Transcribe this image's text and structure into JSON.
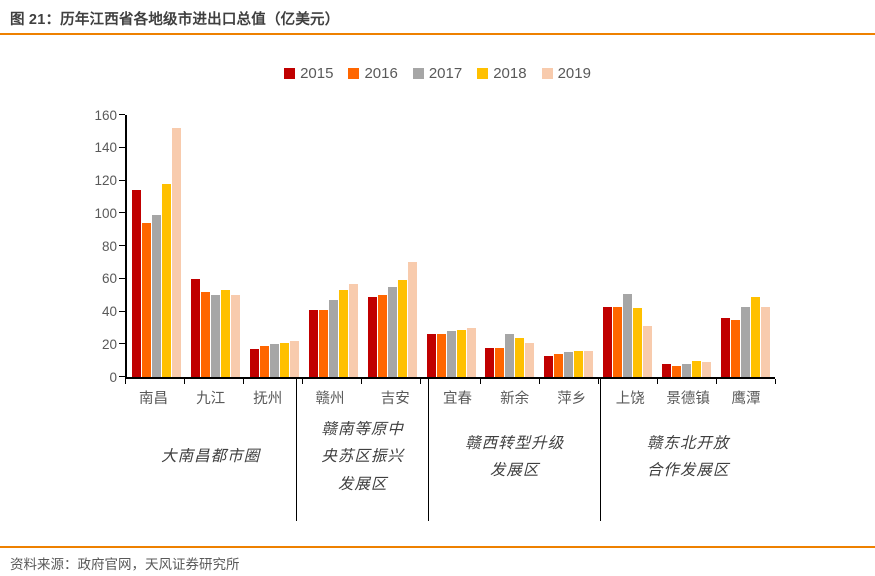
{
  "header": {
    "title": "图 21：历年江西省各地级市进出口总值（亿美元）"
  },
  "accent_color": "#EE8100",
  "source": {
    "text": "资料来源：政府官网，天风证券研究所"
  },
  "chart_data": {
    "type": "bar",
    "title": "历年江西省各地级市进出口总值（亿美元）",
    "unit": "亿美元",
    "ylim": [
      0,
      160
    ],
    "yticks": [
      0,
      20,
      40,
      60,
      80,
      100,
      120,
      140,
      160
    ],
    "grid": false,
    "legend_position": "top",
    "axis_color": "#000000",
    "label_color": "#595959",
    "series": [
      {
        "name": "2015",
        "color": "#C00000"
      },
      {
        "name": "2016",
        "color": "#FF6600"
      },
      {
        "name": "2017",
        "color": "#A6A6A6"
      },
      {
        "name": "2018",
        "color": "#FFC000"
      },
      {
        "name": "2019",
        "color": "#F8CBAD"
      }
    ],
    "groups": [
      {
        "label": "大南昌都市圈",
        "cities": [
          {
            "name": "南昌",
            "values": [
              114,
              94,
              99,
              118,
              152
            ]
          },
          {
            "name": "九江",
            "values": [
              60,
              52,
              50,
              53,
              50
            ]
          },
          {
            "name": "抚州",
            "values": [
              17,
              19,
              20,
              21,
              22
            ]
          }
        ]
      },
      {
        "label": "赣南等原中\n央苏区振兴\n发展区",
        "cities": [
          {
            "name": "赣州",
            "values": [
              41,
              41,
              47,
              53,
              57
            ]
          },
          {
            "name": "吉安",
            "values": [
              49,
              50,
              55,
              59,
              70
            ]
          }
        ]
      },
      {
        "label": "赣西转型升级\n发展区",
        "cities": [
          {
            "name": "宜春",
            "values": [
              26,
              26,
              28,
              29,
              30
            ]
          },
          {
            "name": "新余",
            "values": [
              18,
              18,
              26,
              24,
              21
            ]
          },
          {
            "name": "萍乡",
            "values": [
              13,
              14,
              15,
              16,
              16
            ]
          }
        ]
      },
      {
        "label": "赣东北开放\n合作发展区",
        "cities": [
          {
            "name": "上饶",
            "values": [
              43,
              43,
              51,
              42,
              31
            ]
          },
          {
            "name": "景德镇",
            "values": [
              8,
              7,
              8,
              10,
              9
            ]
          },
          {
            "name": "鹰潭",
            "values": [
              36,
              35,
              43,
              49,
              43
            ]
          }
        ]
      }
    ]
  }
}
